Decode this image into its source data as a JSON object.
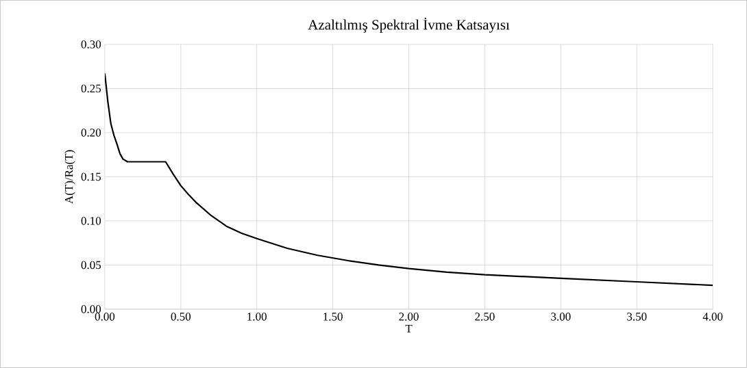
{
  "chart_data": {
    "type": "line",
    "title": "Azaltılmış Spektral İvme Katsayısı",
    "xlabel": "T",
    "ylabel": "A(T)/Ra(T)",
    "x": [
      0,
      0.02,
      0.04,
      0.06,
      0.08,
      0.1,
      0.12,
      0.15,
      0.4,
      0.45,
      0.5,
      0.55,
      0.6,
      0.7,
      0.8,
      0.9,
      1.0,
      1.2,
      1.4,
      1.6,
      1.8,
      2.0,
      2.25,
      2.5,
      3.0,
      3.5,
      4.0
    ],
    "series": [
      {
        "color": "#000000",
        "values": [
          0.267,
          0.235,
          0.21,
          0.197,
          0.187,
          0.176,
          0.17,
          0.167,
          0.167,
          0.153,
          0.14,
          0.13,
          0.121,
          0.106,
          0.094,
          0.086,
          0.08,
          0.069,
          0.061,
          0.055,
          0.05,
          0.046,
          0.042,
          0.039,
          0.035,
          0.031,
          0.027
        ]
      }
    ],
    "xlim": [
      0,
      4
    ],
    "ylim": [
      0,
      0.3
    ],
    "xticks": [
      {
        "value": 0,
        "label": "0.00"
      },
      {
        "value": 0.5,
        "label": "0.50"
      },
      {
        "value": 1,
        "label": "1.00"
      },
      {
        "value": 1.5,
        "label": "1.50"
      },
      {
        "value": 2,
        "label": "2.00"
      },
      {
        "value": 2.5,
        "label": "2.50"
      },
      {
        "value": 3,
        "label": "3.00"
      },
      {
        "value": 3.5,
        "label": "3.50"
      },
      {
        "value": 4,
        "label": "4.00"
      }
    ],
    "yticks": [
      {
        "value": 0,
        "label": "0.00"
      },
      {
        "value": 0.05,
        "label": "0.05"
      },
      {
        "value": 0.1,
        "label": "0.10"
      },
      {
        "value": 0.15,
        "label": "0.15"
      },
      {
        "value": 0.2,
        "label": "0.20"
      },
      {
        "value": 0.25,
        "label": "0.25"
      },
      {
        "value": 0.3,
        "label": "0.30"
      }
    ],
    "grid": true,
    "marker": "none",
    "line_style": "solid"
  }
}
